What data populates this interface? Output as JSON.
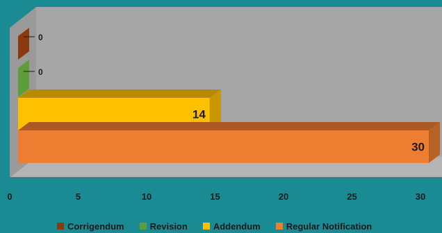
{
  "chart_data": {
    "type": "bar",
    "orientation": "horizontal",
    "style": "3d",
    "categories": [
      "Corrigendum",
      "Revision",
      "Addendum",
      "Regular Notification"
    ],
    "values": [
      0,
      0,
      14,
      30
    ],
    "data_labels": [
      "0",
      "0",
      "14",
      "30"
    ],
    "colors": [
      "#8b3a0f",
      "#5d9e3a",
      "#ffc000",
      "#ed7d31"
    ],
    "xlim": [
      0,
      30
    ],
    "x_ticks": [
      "0",
      "5",
      "10",
      "15",
      "20",
      "25",
      "30"
    ],
    "title": "",
    "xlabel": "",
    "ylabel": "",
    "grid": false,
    "legend_position": "bottom"
  }
}
